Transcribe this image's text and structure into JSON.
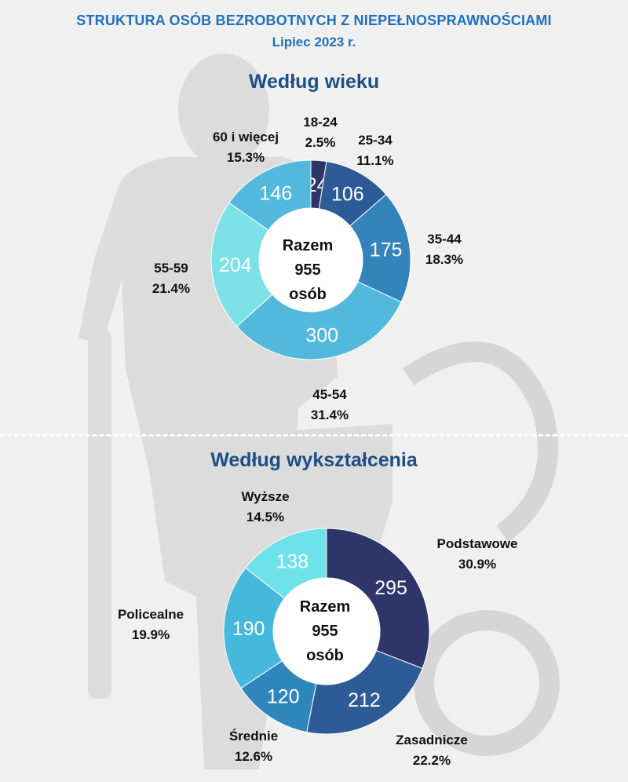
{
  "header": {
    "title": "STRUKTURA OSÓB BEZROBOTNYCH Z NIEPEŁNOSPRAWNOŚCIAMI",
    "subtitle": "Lipiec 2023 r."
  },
  "colors": {
    "title": "#1f70c1",
    "section_title": "#1c4f86",
    "background": "#f0f0f0",
    "silhouette": "#dcdcdc"
  },
  "chart_data": [
    {
      "type": "pie",
      "title": "Według wieku",
      "center": {
        "line1": "Razem",
        "line2": "955",
        "line3": "osób"
      },
      "slices": [
        {
          "label": "18-24",
          "value": 24,
          "percent": "2.5%",
          "color": "#2e3568"
        },
        {
          "label": "25-34",
          "value": 106,
          "percent": "11.1%",
          "color": "#2d5b96"
        },
        {
          "label": "35-44",
          "value": 175,
          "percent": "18.3%",
          "color": "#3384bb"
        },
        {
          "label": "45-54",
          "value": 300,
          "percent": "31.4%",
          "color": "#53b9dc"
        },
        {
          "label": "55-59",
          "value": 204,
          "percent": "21.4%",
          "color": "#7de2e8"
        },
        {
          "label": "60 i więcej",
          "value": 146,
          "percent": "15.3%",
          "color": "#53b9dc"
        }
      ]
    },
    {
      "type": "pie",
      "title": "Według wykształcenia",
      "center": {
        "line1": "Razem",
        "line2": "955",
        "line3": "osób"
      },
      "slices": [
        {
          "label": "Podstawowe",
          "value": 295,
          "percent": "30.9%",
          "color": "#2e3568"
        },
        {
          "label": "Zasadnicze",
          "value": 212,
          "percent": "22.2%",
          "color": "#2d5b96"
        },
        {
          "label": "Średnie",
          "value": 120,
          "percent": "12.6%",
          "color": "#2f86bd"
        },
        {
          "label": "Policealne",
          "value": 190,
          "percent": "19.9%",
          "color": "#45b8dc"
        },
        {
          "label": "Wyższe",
          "value": 138,
          "percent": "14.5%",
          "color": "#6ee2ea"
        }
      ]
    }
  ]
}
